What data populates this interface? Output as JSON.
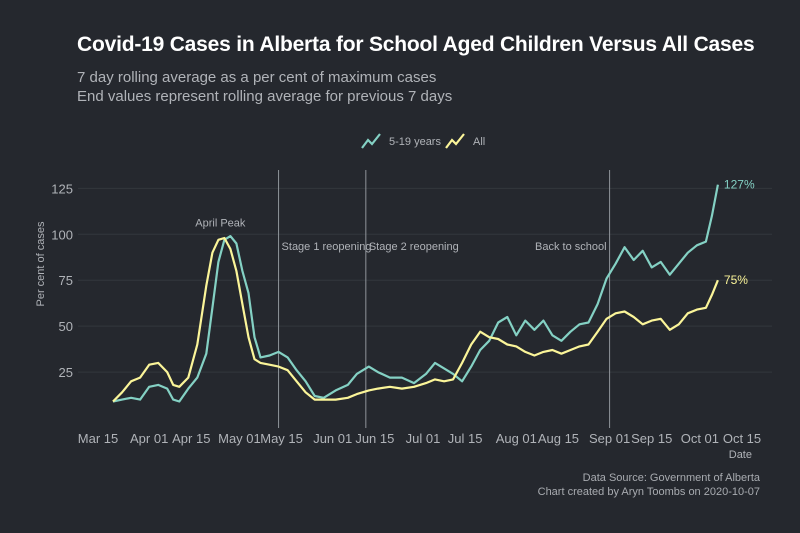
{
  "title": "Covid-19 Cases in Alberta for School Aged Children Versus All Cases",
  "subtitle_line1": "7 day rolling average as a per cent of maximum cases",
  "subtitle_line2": "End values represent rolling average for previous 7 days",
  "caption_line1": "Data Source: Government of Alberta",
  "caption_line2": "Chart created by Aryn Toombs on 2020-10-07",
  "colors": {
    "background": "#25282e",
    "kids": "#84d1c4",
    "all": "#fbf599",
    "grid": "#33373d",
    "vline": "#8f949a",
    "text": "#b0b3b8"
  },
  "chart_data": {
    "type": "line",
    "xlabel": "Date",
    "ylabel": "Per cent of cases",
    "xlim": [
      "2020-03-15",
      "2020-10-15"
    ],
    "ylim": [
      0,
      135
    ],
    "yticks": [
      25,
      50,
      75,
      100,
      125
    ],
    "xticks": [
      {
        "date": "2020-03-15",
        "label": "Mar 15"
      },
      {
        "date": "2020-04-01",
        "label": "Apr 01"
      },
      {
        "date": "2020-04-15",
        "label": "Apr 15"
      },
      {
        "date": "2020-05-01",
        "label": "May 01"
      },
      {
        "date": "2020-05-15",
        "label": "May 15"
      },
      {
        "date": "2020-06-01",
        "label": "Jun 01"
      },
      {
        "date": "2020-06-15",
        "label": "Jun 15"
      },
      {
        "date": "2020-07-01",
        "label": "Jul 01"
      },
      {
        "date": "2020-07-15",
        "label": "Jul 15"
      },
      {
        "date": "2020-08-01",
        "label": "Aug 01"
      },
      {
        "date": "2020-08-15",
        "label": "Aug 15"
      },
      {
        "date": "2020-09-01",
        "label": "Sep 01"
      },
      {
        "date": "2020-09-15",
        "label": "Sep 15"
      },
      {
        "date": "2020-10-01",
        "label": "Oct 01"
      },
      {
        "date": "2020-10-15",
        "label": "Oct 15"
      }
    ],
    "grid": true,
    "legend_position": "top",
    "annotations": [
      {
        "date": "2020-04-22",
        "y": 100,
        "text": "April Peak",
        "type": "text"
      },
      {
        "date": "2020-05-14",
        "text": "Stage 1 reopening",
        "type": "vline"
      },
      {
        "date": "2020-06-12",
        "text": "Stage 2 reopening",
        "type": "vline"
      },
      {
        "date": "2020-09-01",
        "text": "Back to school",
        "type": "vline"
      }
    ],
    "series": [
      {
        "name": "5-19 years",
        "end_label": "127%",
        "points": [
          [
            "2020-03-20",
            9
          ],
          [
            "2020-03-23",
            10
          ],
          [
            "2020-03-26",
            11
          ],
          [
            "2020-03-29",
            10
          ],
          [
            "2020-04-01",
            17
          ],
          [
            "2020-04-04",
            18
          ],
          [
            "2020-04-07",
            16
          ],
          [
            "2020-04-09",
            10
          ],
          [
            "2020-04-11",
            9
          ],
          [
            "2020-04-14",
            16
          ],
          [
            "2020-04-17",
            22
          ],
          [
            "2020-04-20",
            35
          ],
          [
            "2020-04-22",
            60
          ],
          [
            "2020-04-24",
            85
          ],
          [
            "2020-04-26",
            97
          ],
          [
            "2020-04-28",
            99
          ],
          [
            "2020-04-30",
            95
          ],
          [
            "2020-05-02",
            80
          ],
          [
            "2020-05-04",
            68
          ],
          [
            "2020-05-06",
            44
          ],
          [
            "2020-05-08",
            33
          ],
          [
            "2020-05-11",
            34
          ],
          [
            "2020-05-14",
            36
          ],
          [
            "2020-05-17",
            33
          ],
          [
            "2020-05-20",
            26
          ],
          [
            "2020-05-23",
            20
          ],
          [
            "2020-05-26",
            12
          ],
          [
            "2020-05-29",
            11
          ],
          [
            "2020-06-02",
            15
          ],
          [
            "2020-06-06",
            18
          ],
          [
            "2020-06-09",
            24
          ],
          [
            "2020-06-13",
            28
          ],
          [
            "2020-06-16",
            25
          ],
          [
            "2020-06-20",
            22
          ],
          [
            "2020-06-24",
            22
          ],
          [
            "2020-06-28",
            19
          ],
          [
            "2020-07-02",
            24
          ],
          [
            "2020-07-05",
            30
          ],
          [
            "2020-07-08",
            27
          ],
          [
            "2020-07-11",
            24
          ],
          [
            "2020-07-14",
            20
          ],
          [
            "2020-07-17",
            28
          ],
          [
            "2020-07-20",
            37
          ],
          [
            "2020-07-23",
            42
          ],
          [
            "2020-07-26",
            52
          ],
          [
            "2020-07-29",
            55
          ],
          [
            "2020-08-01",
            45
          ],
          [
            "2020-08-04",
            53
          ],
          [
            "2020-08-07",
            48
          ],
          [
            "2020-08-10",
            53
          ],
          [
            "2020-08-13",
            45
          ],
          [
            "2020-08-16",
            42
          ],
          [
            "2020-08-19",
            47
          ],
          [
            "2020-08-22",
            51
          ],
          [
            "2020-08-25",
            52
          ],
          [
            "2020-08-28",
            62
          ],
          [
            "2020-08-31",
            76
          ],
          [
            "2020-09-03",
            84
          ],
          [
            "2020-09-06",
            93
          ],
          [
            "2020-09-09",
            86
          ],
          [
            "2020-09-12",
            91
          ],
          [
            "2020-09-15",
            82
          ],
          [
            "2020-09-18",
            85
          ],
          [
            "2020-09-21",
            78
          ],
          [
            "2020-09-24",
            84
          ],
          [
            "2020-09-27",
            90
          ],
          [
            "2020-09-30",
            94
          ],
          [
            "2020-10-03",
            96
          ],
          [
            "2020-10-05",
            110
          ],
          [
            "2020-10-07",
            127
          ]
        ]
      },
      {
        "name": "All",
        "end_label": "75%",
        "points": [
          [
            "2020-03-20",
            9
          ],
          [
            "2020-03-23",
            14
          ],
          [
            "2020-03-26",
            20
          ],
          [
            "2020-03-29",
            22
          ],
          [
            "2020-04-01",
            29
          ],
          [
            "2020-04-04",
            30
          ],
          [
            "2020-04-07",
            25
          ],
          [
            "2020-04-09",
            18
          ],
          [
            "2020-04-11",
            17
          ],
          [
            "2020-04-14",
            22
          ],
          [
            "2020-04-17",
            40
          ],
          [
            "2020-04-20",
            72
          ],
          [
            "2020-04-22",
            90
          ],
          [
            "2020-04-24",
            97
          ],
          [
            "2020-04-26",
            98
          ],
          [
            "2020-04-28",
            92
          ],
          [
            "2020-04-30",
            80
          ],
          [
            "2020-05-02",
            62
          ],
          [
            "2020-05-04",
            44
          ],
          [
            "2020-05-06",
            32
          ],
          [
            "2020-05-08",
            30
          ],
          [
            "2020-05-11",
            29
          ],
          [
            "2020-05-14",
            28
          ],
          [
            "2020-05-17",
            26
          ],
          [
            "2020-05-20",
            20
          ],
          [
            "2020-05-23",
            14
          ],
          [
            "2020-05-26",
            10
          ],
          [
            "2020-05-29",
            10
          ],
          [
            "2020-06-02",
            10
          ],
          [
            "2020-06-06",
            11
          ],
          [
            "2020-06-09",
            13
          ],
          [
            "2020-06-13",
            15
          ],
          [
            "2020-06-16",
            16
          ],
          [
            "2020-06-20",
            17
          ],
          [
            "2020-06-24",
            16
          ],
          [
            "2020-06-28",
            17
          ],
          [
            "2020-07-02",
            19
          ],
          [
            "2020-07-05",
            21
          ],
          [
            "2020-07-08",
            20
          ],
          [
            "2020-07-11",
            21
          ],
          [
            "2020-07-14",
            30
          ],
          [
            "2020-07-17",
            40
          ],
          [
            "2020-07-20",
            47
          ],
          [
            "2020-07-23",
            44
          ],
          [
            "2020-07-26",
            43
          ],
          [
            "2020-07-29",
            40
          ],
          [
            "2020-08-01",
            39
          ],
          [
            "2020-08-04",
            36
          ],
          [
            "2020-08-07",
            34
          ],
          [
            "2020-08-10",
            36
          ],
          [
            "2020-08-13",
            37
          ],
          [
            "2020-08-16",
            35
          ],
          [
            "2020-08-19",
            37
          ],
          [
            "2020-08-22",
            39
          ],
          [
            "2020-08-25",
            40
          ],
          [
            "2020-08-28",
            47
          ],
          [
            "2020-08-31",
            54
          ],
          [
            "2020-09-03",
            57
          ],
          [
            "2020-09-06",
            58
          ],
          [
            "2020-09-09",
            55
          ],
          [
            "2020-09-12",
            51
          ],
          [
            "2020-09-15",
            53
          ],
          [
            "2020-09-18",
            54
          ],
          [
            "2020-09-21",
            48
          ],
          [
            "2020-09-24",
            51
          ],
          [
            "2020-09-27",
            57
          ],
          [
            "2020-09-30",
            59
          ],
          [
            "2020-10-03",
            60
          ],
          [
            "2020-10-05",
            67
          ],
          [
            "2020-10-07",
            75
          ]
        ]
      }
    ]
  }
}
